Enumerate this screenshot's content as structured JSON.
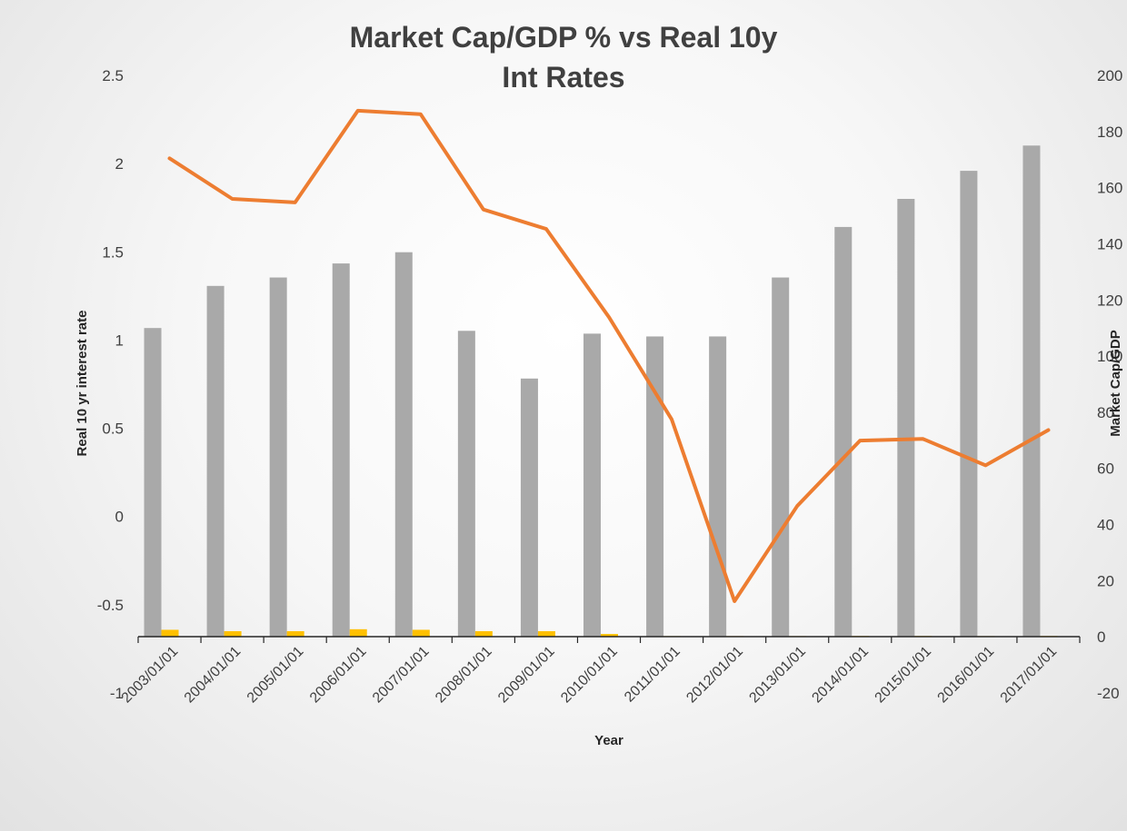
{
  "chart_data": {
    "type": "bar",
    "title_lines": [
      "Market Cap/GDP % vs Real 10y",
      "Int Rates"
    ],
    "xlabel": "Year",
    "ylabel_left": "Real 10 yr interest rate",
    "ylabel_right": "Market Cap/GDP",
    "categories": [
      "2003/01/01",
      "2004/01/01",
      "2005/01/01",
      "2006/01/01",
      "2007/01/01",
      "2008/01/01",
      "2009/01/01",
      "2010/01/01",
      "2011/01/01",
      "2012/01/01",
      "2013/01/01",
      "2014/01/01",
      "2015/01/01",
      "2016/01/01",
      "2017/01/01"
    ],
    "ylim_left": [
      -1,
      2.5
    ],
    "ylim_right": [
      -20,
      200
    ],
    "yticks_left": [
      "-1",
      "-0.5",
      "0",
      "0.5",
      "1",
      "1.5",
      "2",
      "2.5"
    ],
    "yticks_right": [
      "-20",
      "0",
      "20",
      "40",
      "60",
      "80",
      "100",
      "120",
      "140",
      "160",
      "180",
      "200"
    ],
    "series": [
      {
        "kind": "bar",
        "axis": "right",
        "color": "#a9a9a9",
        "values": [
          110,
          125,
          128,
          133,
          137,
          109,
          92,
          108,
          107,
          107,
          128,
          146,
          156,
          166,
          175
        ]
      },
      {
        "kind": "bar",
        "axis": "right",
        "color": "#ffc000",
        "values": [
          2.5,
          2.0,
          2.0,
          2.7,
          2.5,
          2.0,
          2.0,
          1.0,
          0.2,
          0.0,
          0.0,
          0.3,
          0.3,
          0.0,
          0.3
        ]
      },
      {
        "kind": "line",
        "axis": "left",
        "color": "#ed7d31",
        "values": [
          2.03,
          1.8,
          1.78,
          2.3,
          2.28,
          1.74,
          1.63,
          1.13,
          0.55,
          -0.48,
          0.06,
          0.43,
          0.44,
          0.29,
          0.49
        ]
      }
    ]
  }
}
